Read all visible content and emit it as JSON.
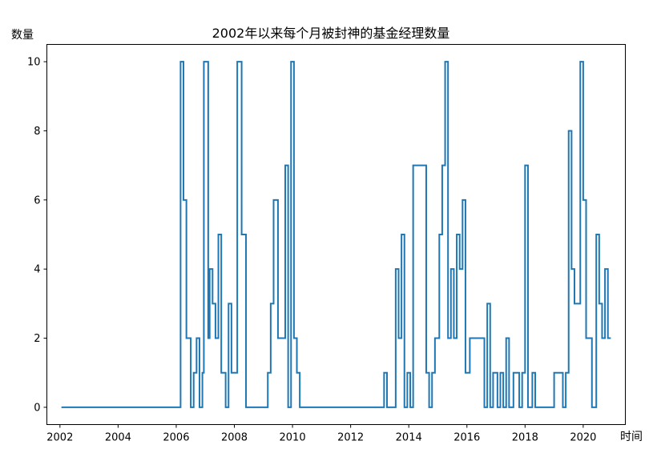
{
  "chart_data": {
    "type": "line",
    "title": "2002年以来每个月被封神的基金经理数量",
    "xlabel": "时间",
    "ylabel": "数量",
    "xlim": [
      2001.55,
      2021.45
    ],
    "ylim": [
      -0.5,
      10.5
    ],
    "xticks": [
      2002,
      2004,
      2006,
      2008,
      2010,
      2012,
      2014,
      2016,
      2018,
      2020
    ],
    "xtick_labels": [
      "2002",
      "2004",
      "2006",
      "2008",
      "2010",
      "2012",
      "2014",
      "2016",
      "2018",
      "2020"
    ],
    "yticks": [
      0,
      2,
      4,
      6,
      8,
      10
    ],
    "ytick_labels": [
      "0",
      "2",
      "4",
      "6",
      "8",
      "10"
    ],
    "grid": false,
    "legend": "none",
    "step": "post",
    "series": [
      {
        "color": "#1f77b4",
        "x": [
          2002.05,
          2006.15,
          2006.25,
          2006.35,
          2006.5,
          2006.6,
          2006.7,
          2006.8,
          2006.9,
          2006.95,
          2007.1,
          2007.15,
          2007.25,
          2007.35,
          2007.45,
          2007.55,
          2007.7,
          2007.8,
          2007.9,
          2008.1,
          2008.25,
          2008.4,
          2009.15,
          2009.25,
          2009.35,
          2009.5,
          2009.75,
          2009.85,
          2009.95,
          2010.05,
          2010.15,
          2010.25,
          2013.15,
          2013.25,
          2013.55,
          2013.65,
          2013.75,
          2013.85,
          2013.95,
          2014.05,
          2014.15,
          2014.6,
          2014.7,
          2014.8,
          2014.9,
          2015.05,
          2015.15,
          2015.25,
          2015.35,
          2015.45,
          2015.55,
          2015.65,
          2015.75,
          2015.85,
          2015.95,
          2016.1,
          2016.6,
          2016.7,
          2016.8,
          2016.9,
          2017.05,
          2017.15,
          2017.25,
          2017.35,
          2017.45,
          2017.6,
          2017.8,
          2017.9,
          2018.0,
          2018.1,
          2018.25,
          2018.35,
          2019.0,
          2019.3,
          2019.4,
          2019.5,
          2019.6,
          2019.7,
          2019.8,
          2019.9,
          2020.0,
          2020.1,
          2020.2,
          2020.3,
          2020.45,
          2020.55,
          2020.65,
          2020.75,
          2020.85,
          2020.95
        ],
        "y": [
          0,
          10,
          6,
          2,
          0,
          1,
          2,
          0,
          1,
          10,
          2,
          4,
          3,
          2,
          5,
          1,
          0,
          3,
          1,
          10,
          5,
          0,
          1,
          3,
          6,
          2,
          7,
          0,
          10,
          2,
          1,
          0,
          1,
          0,
          4,
          2,
          5,
          0,
          1,
          0,
          7,
          1,
          0,
          1,
          2,
          5,
          7,
          10,
          2,
          4,
          2,
          5,
          4,
          6,
          1,
          2,
          0,
          3,
          0,
          1,
          0,
          1,
          0,
          2,
          0,
          1,
          0,
          1,
          7,
          0,
          1,
          0,
          1,
          0,
          1,
          8,
          4,
          3,
          3,
          10,
          6,
          2,
          2,
          0,
          5,
          3,
          2,
          4,
          2,
          2
        ]
      }
    ]
  }
}
